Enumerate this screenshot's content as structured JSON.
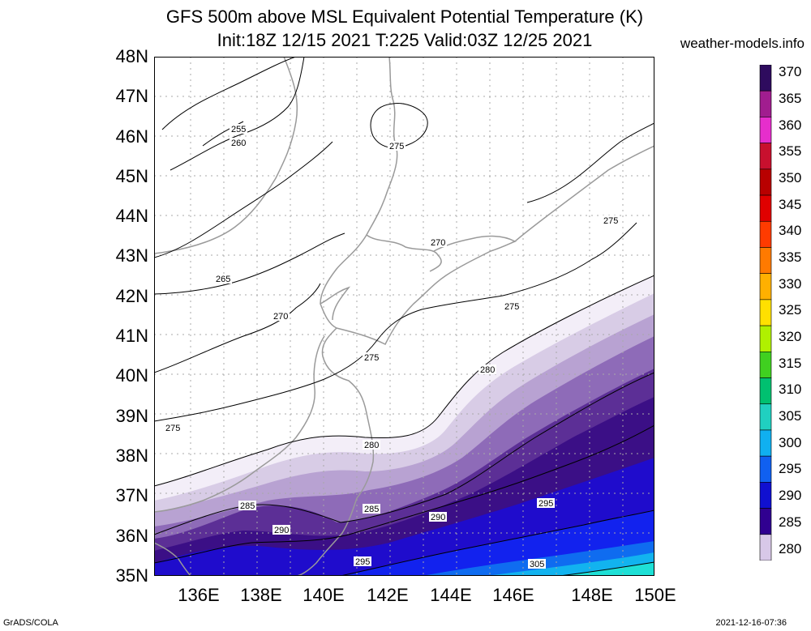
{
  "header": {
    "title": "GFS 500m above MSL Equivalent Potential Temperature (K)",
    "subtitle": "Init:18Z 12/15 2021 T:225 Valid:03Z 12/25 2021",
    "site": "weather-models.info"
  },
  "axes": {
    "lat_labels": [
      "48N",
      "47N",
      "46N",
      "45N",
      "44N",
      "43N",
      "42N",
      "41N",
      "40N",
      "39N",
      "38N",
      "37N",
      "36N",
      "35N"
    ],
    "lon_labels": [
      "136E",
      "138E",
      "140E",
      "142E",
      "144E",
      "146E",
      "148E",
      "150E"
    ]
  },
  "contours": {
    "labels": [
      "255",
      "260",
      "265",
      "270",
      "270",
      "275",
      "275",
      "275",
      "275",
      "275",
      "280",
      "280",
      "285",
      "285",
      "290",
      "290",
      "295",
      "295",
      "305"
    ]
  },
  "colorbar": {
    "values": [
      "370",
      "365",
      "360",
      "355",
      "350",
      "345",
      "340",
      "335",
      "330",
      "325",
      "320",
      "315",
      "310",
      "305",
      "300",
      "295",
      "290",
      "285",
      "280"
    ],
    "colors": [
      "#2e0b5e",
      "#a11d8f",
      "#e62ecc",
      "#c8102e",
      "#b80000",
      "#e00000",
      "#ff3b00",
      "#ff7a00",
      "#ffb000",
      "#ffe000",
      "#b0f000",
      "#40d020",
      "#00c070",
      "#20d0c0",
      "#10b0f0",
      "#1060f0",
      "#1010d0",
      "#300090",
      "#d8c8e8"
    ],
    "fill_colors": {
      "f280": "#f3eef8",
      "f283": "#d8cce6",
      "f285": "#b8a2d2",
      "f287": "#8e6bb8",
      "f290": "#5c2f96",
      "f292": "#3b0f86",
      "f295": "#1f0ccc",
      "f298": "#1222ee",
      "f300": "#0f6cf0",
      "f303": "#12b3ef",
      "f305": "#1ee0d6"
    }
  },
  "footer": {
    "left": "GrADS/COLA",
    "right": "2021-12-16-07:36"
  }
}
